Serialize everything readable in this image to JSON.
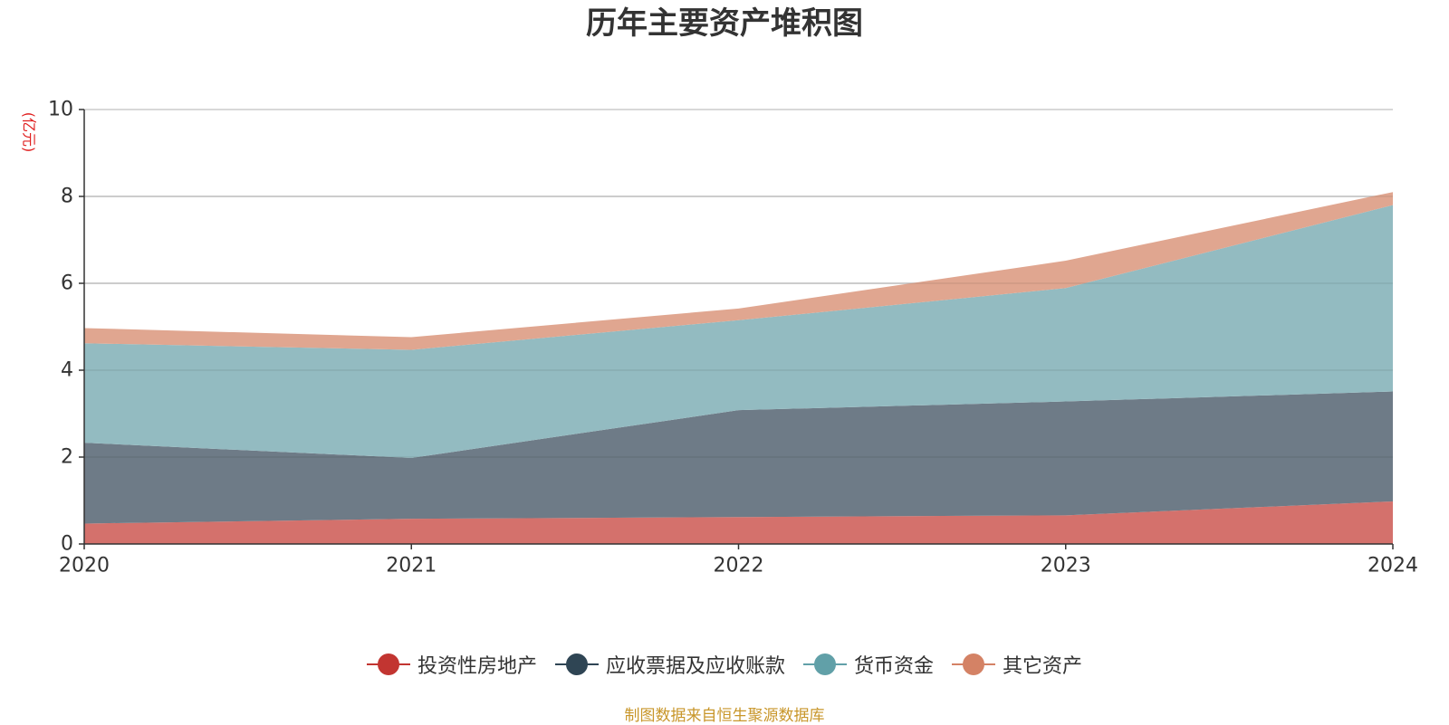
{
  "chart_data": {
    "type": "area",
    "stacked": true,
    "title": "历年主要资产堆积图",
    "ylabel": "(亿元)",
    "xlabel": "",
    "x": [
      "2020",
      "2021",
      "2022",
      "2023",
      "2024"
    ],
    "ylim": [
      0,
      10
    ],
    "yticks": [
      "0",
      "2",
      "4",
      "6",
      "8",
      "10"
    ],
    "grid": true,
    "legend_position": "bottom",
    "series": [
      {
        "name": "投资性房地产",
        "values": [
          0.47,
          0.58,
          0.62,
          0.66,
          0.98
        ],
        "color": "#d4716c",
        "legend_color": "#c23531"
      },
      {
        "name": "应收票据及应收账款",
        "values": [
          1.86,
          1.4,
          2.46,
          2.62,
          2.53
        ],
        "color": "#6e7b87",
        "legend_color": "#2f4554"
      },
      {
        "name": "货币资金",
        "values": [
          2.29,
          2.49,
          2.07,
          2.61,
          4.29
        ],
        "color": "#93bbc1",
        "legend_color": "#61a0a8"
      },
      {
        "name": "其它资产",
        "values": [
          0.35,
          0.29,
          0.27,
          0.63,
          0.3
        ],
        "color": "#e0a690",
        "legend_color": "#d48265"
      }
    ]
  },
  "source_note": "制图数据来自恒生聚源数据库"
}
